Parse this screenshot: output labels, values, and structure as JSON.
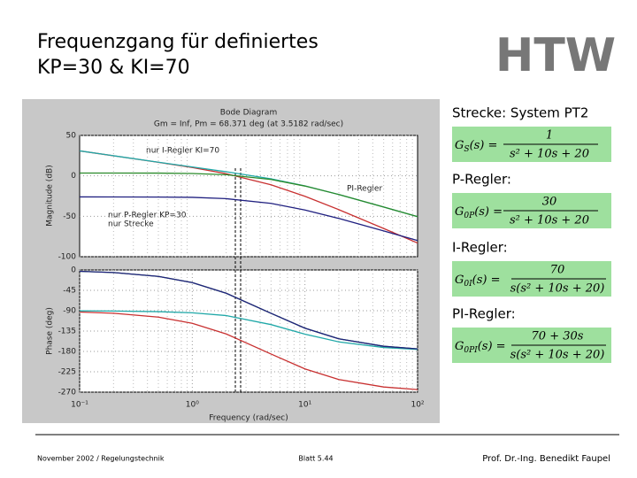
{
  "slide": {
    "title_line1": "Frequenzgang für definiertes",
    "title_line2": "KP=30 & KI=70",
    "logo": "HTW",
    "footer_left": "November 2002 / Regelungstechnik",
    "footer_center": "Blatt 5.44",
    "footer_right": "Prof. Dr.-Ing. Benedikt Faupel"
  },
  "formulas": [
    {
      "heading": "Strecke: System PT2",
      "lhs": "G",
      "sub": "S",
      "arg": "(s) =",
      "num": "1",
      "den": "s² + 10s + 20"
    },
    {
      "heading": "P-Regler:",
      "lhs": "G",
      "sub": "0P",
      "arg": "(s) =",
      "num": "30",
      "den": "s² + 10s + 20"
    },
    {
      "heading": "I-Regler:",
      "lhs": "G",
      "sub": "0I",
      "arg": "(s) =",
      "num": "70",
      "den": "s(s² + 10s + 20)"
    },
    {
      "heading": "PI-Regler:",
      "lhs": "G",
      "sub": "0PI",
      "arg": "(s) =",
      "num": "70 + 30s",
      "den": "s(s² + 10s + 20)"
    }
  ],
  "chart_data": [
    {
      "type": "line",
      "title": "Bode Diagram",
      "subtitle": "Gm = Inf,  Pm = 68.371 deg (at 3.5182 rad/sec)",
      "ylabel": "Magnitude (dB)",
      "x": [
        0.1,
        0.2,
        0.5,
        1,
        2,
        5,
        10,
        20,
        50,
        100
      ],
      "xlim": [
        0.1,
        100
      ],
      "log_x": true,
      "ylim": [
        -100,
        50
      ],
      "yticks": [
        50,
        0,
        -50,
        -100
      ],
      "grid": true,
      "series": [
        {
          "name": "nur I-Regler KI=70",
          "color": "#c83030",
          "values": [
            30.9,
            24.8,
            16.7,
            10.3,
            2.7,
            -11.1,
            -25.3,
            -41.8,
            -65.1,
            -83.1
          ]
        },
        {
          "name": "PI-Regler",
          "color": "#20a8a8",
          "values": [
            30.9,
            24.9,
            16.9,
            11.0,
            5.1,
            -3.6,
            -12.4,
            -23.1,
            -38.5,
            -50.5
          ]
        },
        {
          "name": "nur P-Regler KP=30",
          "color": "#2a8a2a",
          "values": [
            3.5,
            3.5,
            3.4,
            2.9,
            1.4,
            -4.5,
            -12.6,
            -23.1,
            -38.5,
            -50.5
          ]
        },
        {
          "name": "nur Strecke",
          "color": "#202080",
          "values": [
            -26.0,
            -26.1,
            -26.2,
            -26.6,
            -28.2,
            -34.0,
            -42.2,
            -52.7,
            -68.1,
            -80.0
          ]
        }
      ]
    },
    {
      "type": "line",
      "ylabel": "Phase (deg)",
      "xlabel": "Frequency (rad/sec)",
      "x": [
        0.1,
        0.2,
        0.5,
        1,
        2,
        5,
        10,
        20,
        50,
        100
      ],
      "xlim": [
        0.1,
        100
      ],
      "log_x": true,
      "xticks": [
        {
          "value": 0.1,
          "label": "10⁻¹"
        },
        {
          "value": 1,
          "label": "10⁰"
        },
        {
          "value": 10,
          "label": "10¹"
        },
        {
          "value": 100,
          "label": "10²"
        }
      ],
      "ylim": [
        -270,
        0
      ],
      "yticks": [
        0,
        -45,
        -90,
        -135,
        -180,
        -225,
        -270
      ],
      "grid": true,
      "series": [
        {
          "color": "#c83030",
          "values": [
            -92.9,
            -95.7,
            -104.2,
            -117.8,
            -141.3,
            -185.7,
            -218.7,
            -242.2,
            -258.6,
            -264.3
          ]
        },
        {
          "color": "#20a8a8",
          "values": [
            -90.4,
            -90.8,
            -92.1,
            -94.6,
            -100.7,
            -120.7,
            -141.8,
            -158.9,
            -171.3,
            -175.6
          ]
        },
        {
          "color": "#2a8a2a",
          "values": [
            -2.9,
            -5.7,
            -14.2,
            -27.8,
            -51.3,
            -95.7,
            -128.7,
            -152.2,
            -168.6,
            -174.3
          ]
        },
        {
          "color": "#202080",
          "values": [
            -2.9,
            -5.7,
            -14.2,
            -27.8,
            -51.3,
            -95.7,
            -128.7,
            -152.2,
            -168.6,
            -174.3
          ]
        }
      ]
    }
  ]
}
